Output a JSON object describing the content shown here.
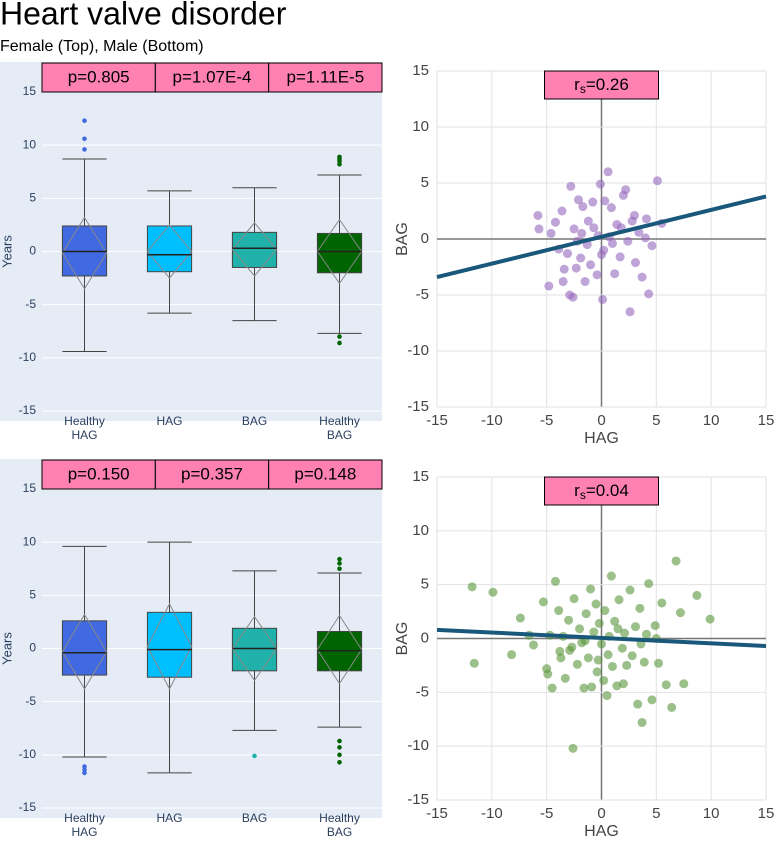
{
  "title": "Heart valve disorder",
  "subtitle": "Female (Top), Male (Bottom)",
  "chart_data": [
    {
      "type": "box",
      "y_label": "Years",
      "ylim": [
        -15,
        15
      ],
      "yticks": [
        -15,
        -10,
        -5,
        0,
        5,
        10,
        15
      ],
      "categories": [
        "Healthy HAG",
        "HAG",
        "BAG",
        "Healthy BAG"
      ],
      "annotations": [
        "p=0.805",
        "p=1.07E-4",
        "p=1.11E-5"
      ],
      "boxes": [
        {
          "color": "#4169e1",
          "q1": -2.3,
          "median": 0,
          "q3": 2.4,
          "lowerfence": -9.4,
          "upperfence": 8.7,
          "mean": -0.15,
          "sd": 3.35,
          "outliers": [
            12.3,
            10.6,
            9.6
          ]
        },
        {
          "color": "#00bfff",
          "q1": -1.9,
          "median": -0.3,
          "q3": 2.4,
          "lowerfence": -5.8,
          "upperfence": 5.7,
          "mean": 0,
          "sd": 2.5,
          "outliers": []
        },
        {
          "color": "#20b2aa",
          "q1": -1.5,
          "median": 0.3,
          "q3": 1.8,
          "lowerfence": -6.5,
          "upperfence": 6.0,
          "mean": 0.2,
          "sd": 2.5,
          "outliers": []
        },
        {
          "color": "#006400",
          "q1": -2.0,
          "median": 0,
          "q3": 1.7,
          "lowerfence": -7.7,
          "upperfence": 7.2,
          "mean": 0,
          "sd": 3.0,
          "outliers": [
            8.9,
            8.7,
            8.5,
            8.2,
            -8.0,
            -8.6
          ]
        }
      ]
    },
    {
      "type": "scatter",
      "x_label": "HAG",
      "y_label": "BAG",
      "annotation": {
        "base": "r",
        "subscript": "s",
        "rest": "=0.26"
      },
      "xlim": [
        -15,
        15
      ],
      "ylim": [
        -15,
        15
      ],
      "xticks": [
        -15,
        -10,
        -5,
        0,
        5,
        10,
        15
      ],
      "yticks": [
        -15,
        -10,
        -5,
        0,
        5,
        10,
        15
      ],
      "color": "rgba(148,103,189,0.6)",
      "x": [
        -5.8,
        -5.7,
        -4.6,
        -4.2,
        -3.9,
        -3.6,
        -3.5,
        -3.1,
        -2.8,
        -2.9,
        -2.6,
        -2.5,
        -2.3,
        -2.1,
        -1.9,
        -1.8,
        -1.7,
        -1.5,
        -1.3,
        -1.0,
        -0.8,
        -0.7,
        -0.4,
        -0.3,
        -0.1,
        0.0,
        0.1,
        0.3,
        0.6,
        0.7,
        0.9,
        1.0,
        1.2,
        1.4,
        1.7,
        2.0,
        2.2,
        2.4,
        2.6,
        2.8,
        3.1,
        3.4,
        3.7,
        4.1,
        4.3,
        4.6,
        5.1,
        5.5,
        -4.8,
        -3.4,
        1.8,
        0.2,
        -1.2,
        3.0,
        4.0,
        -2.2
      ],
      "y": [
        2.1,
        0.9,
        0.5,
        1.5,
        -0.9,
        2.5,
        -3.8,
        -1.3,
        4.7,
        -5.0,
        -5.2,
        0.9,
        -2.6,
        3.5,
        -1.7,
        0.5,
        2.9,
        -3.8,
        -0.5,
        -2.3,
        3.3,
        1.0,
        -3.2,
        0.3,
        4.9,
        -1.4,
        -5.4,
        3.4,
        6.0,
        0.2,
        2.8,
        -0.4,
        -3.1,
        1.3,
        -1.6,
        3.9,
        4.4,
        -0.2,
        -6.5,
        1.6,
        -2.1,
        0.6,
        -3.4,
        1.8,
        -4.9,
        -0.6,
        5.2,
        1.4,
        -4.2,
        -2.7,
        1.0,
        -1.0,
        1.6,
        2.1,
        0.1,
        -0.2
      ],
      "fit": {
        "color": "#19587a",
        "x": [
          -15,
          15
        ],
        "y": [
          -3.4,
          3.8
        ]
      }
    },
    {
      "type": "box",
      "y_label": "Years",
      "ylim": [
        -15,
        15
      ],
      "yticks": [
        -15,
        -10,
        -5,
        0,
        5,
        10,
        15
      ],
      "categories": [
        "Healthy HAG",
        "HAG",
        "BAG",
        "Healthy BAG"
      ],
      "annotations": [
        "p=0.150",
        "p=0.357",
        "p=0.148"
      ],
      "boxes": [
        {
          "color": "#4169e1",
          "q1": -2.5,
          "median": -0.4,
          "q3": 2.6,
          "lowerfence": -10.2,
          "upperfence": 9.6,
          "mean": -0.3,
          "sd": 3.5,
          "outliers": [
            -11.1,
            -11.4,
            -11.7
          ]
        },
        {
          "color": "#00bfff",
          "q1": -2.7,
          "median": -0.1,
          "q3": 3.4,
          "lowerfence": -11.7,
          "upperfence": 10.0,
          "mean": 0.2,
          "sd": 4.0,
          "outliers": []
        },
        {
          "color": "#20b2aa",
          "q1": -2.1,
          "median": 0,
          "q3": 1.9,
          "lowerfence": -7.7,
          "upperfence": 7.3,
          "mean": 0,
          "sd": 3.0,
          "outliers": [
            -10.1
          ]
        },
        {
          "color": "#006400",
          "q1": -2.1,
          "median": -0.2,
          "q3": 1.6,
          "lowerfence": -7.4,
          "upperfence": 7.1,
          "mean": -0.1,
          "sd": 3.2,
          "outliers": [
            8.4,
            8.0,
            7.5,
            -8.7,
            -9.3,
            -10.0,
            -10.7
          ]
        }
      ]
    },
    {
      "type": "scatter",
      "x_label": "HAG",
      "y_label": "BAG",
      "annotation": {
        "base": "r",
        "subscript": "s",
        "rest": "=0.04"
      },
      "xlim": [
        -15,
        15
      ],
      "ylim": [
        -15,
        15
      ],
      "xticks": [
        -15,
        -10,
        -5,
        0,
        5,
        10,
        15
      ],
      "yticks": [
        -15,
        -10,
        -5,
        0,
        5,
        10,
        15
      ],
      "color": "rgba(90,150,60,0.6)",
      "x": [
        -11.8,
        -11.6,
        -9.9,
        -8.2,
        -7.4,
        -6.6,
        -6.2,
        -5.3,
        -5.0,
        -4.9,
        -4.5,
        -4.2,
        -3.9,
        -3.7,
        -3.5,
        -3.3,
        -3.0,
        -2.9,
        -2.6,
        -2.5,
        -2.2,
        -2.0,
        -1.8,
        -1.6,
        -1.4,
        -1.2,
        -1.0,
        -0.9,
        -0.7,
        -0.5,
        -0.4,
        -0.2,
        0.0,
        0.2,
        0.3,
        0.5,
        0.7,
        0.9,
        1.0,
        1.2,
        1.4,
        1.6,
        1.9,
        2.1,
        2.3,
        2.6,
        2.8,
        3.1,
        3.3,
        3.5,
        3.7,
        3.9,
        4.1,
        4.3,
        4.6,
        4.9,
        5.2,
        5.5,
        5.9,
        6.4,
        6.8,
        7.2,
        7.5,
        8.7,
        9.9,
        -3.8,
        -1.5,
        0.6,
        2.0,
        -4.7,
        3.6,
        1.5,
        -0.3,
        -2.7,
        5.0
      ],
      "y": [
        4.8,
        -2.3,
        4.3,
        -1.5,
        1.9,
        0.3,
        -0.6,
        3.4,
        -2.8,
        -3.3,
        -4.6,
        5.3,
        2.6,
        -1.8,
        0.2,
        -3.7,
        1.7,
        -1.1,
        -10.2,
        3.7,
        -2.4,
        0.9,
        -0.4,
        -4.6,
        2.3,
        -1.8,
        4.6,
        -4.5,
        0.6,
        3.2,
        -3.1,
        1.4,
        -0.5,
        -3.9,
        2.6,
        -5.3,
        0.2,
        5.8,
        -2.6,
        1.6,
        -4.4,
        3.6,
        -0.9,
        0.5,
        -2.5,
        4.5,
        -1.6,
        1.1,
        -6.1,
        2.8,
        -7.8,
        -2.2,
        0.4,
        5.1,
        -5.7,
        1.2,
        -2.3,
        3.3,
        -4.3,
        -6.4,
        7.2,
        2.4,
        -4.2,
        4.0,
        1.8,
        -1.2,
        -0.2,
        -1.5,
        -4.2,
        0.3,
        -0.5,
        0.9,
        -2.0,
        -0.8,
        0.0
      ],
      "fit": {
        "color": "#19587a",
        "x": [
          -15,
          15
        ],
        "y": [
          0.8,
          -0.7
        ]
      }
    }
  ]
}
